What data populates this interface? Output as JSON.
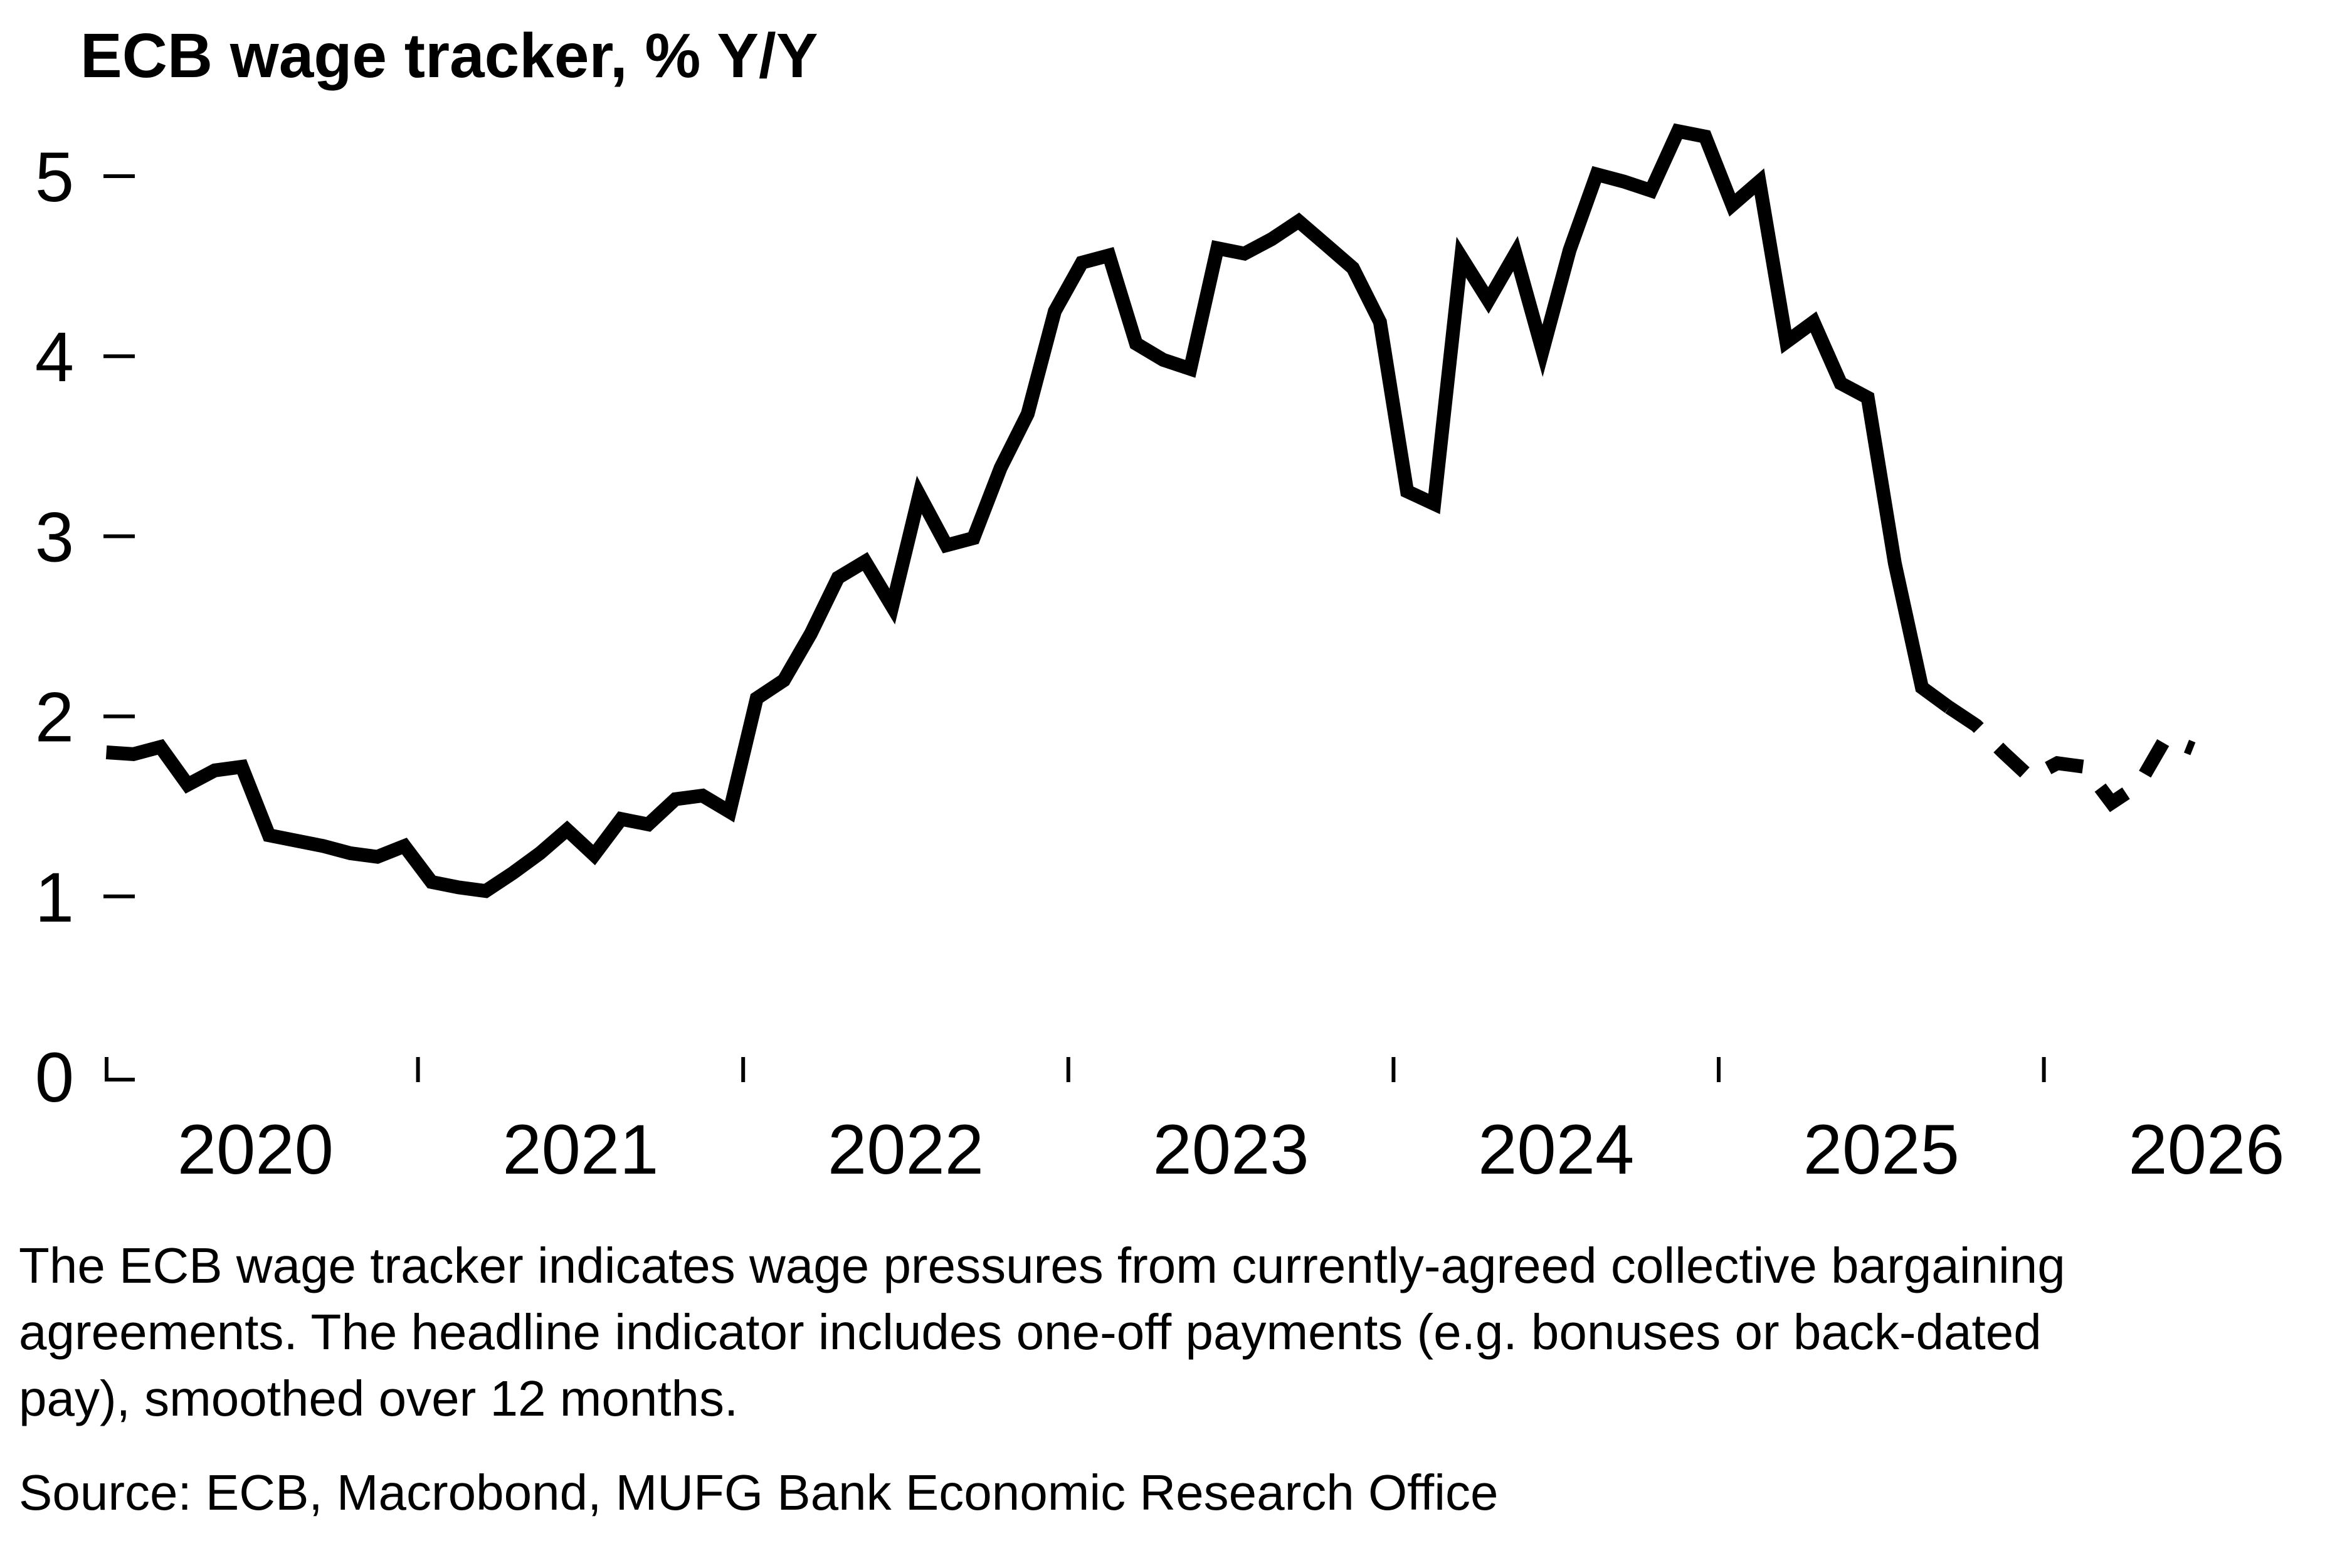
{
  "title": "ECB wage tracker, % Y/Y",
  "footnote": {
    "lines": [
      "The ECB wage tracker indicates wage pressures from currently-agreed collective bargaining",
      "agreements. The headline indicator includes one-off payments (e.g. bonuses or back-dated",
      "pay), smoothed over 12 months."
    ]
  },
  "source": "Source: ECB, Macrobond, MUFG Bank Economic Research Office",
  "chart_data": {
    "type": "line",
    "title": "ECB wage tracker, % Y/Y",
    "xlabel": "",
    "ylabel": "",
    "ylim": [
      0,
      5.5
    ],
    "yticks": [
      "0",
      "1",
      "2",
      "3",
      "4",
      "5"
    ],
    "grid": false,
    "legend": "none",
    "line_color": "#000000",
    "x_year_boundary_ticks": [
      2021,
      2022,
      2023,
      2024,
      2025,
      2026
    ],
    "x_year_labels": [
      "2020",
      "2021",
      "2022",
      "2023",
      "2024",
      "2025",
      "2026"
    ],
    "series_name": "ECB wage tracker, headline indicator, % Y/Y (smoothed over 12 months)",
    "freq": "monthly",
    "forecast_style": "dashed",
    "forecast_start_index": 69,
    "months": [
      "2020-01",
      "2020-02",
      "2020-03",
      "2020-04",
      "2020-05",
      "2020-06",
      "2020-07",
      "2020-08",
      "2020-09",
      "2020-10",
      "2020-11",
      "2020-12",
      "2021-01",
      "2021-02",
      "2021-03",
      "2021-04",
      "2021-05",
      "2021-06",
      "2021-07",
      "2021-08",
      "2021-09",
      "2021-10",
      "2021-11",
      "2021-12",
      "2022-01",
      "2022-02",
      "2022-03",
      "2022-04",
      "2022-05",
      "2022-06",
      "2022-07",
      "2022-08",
      "2022-09",
      "2022-10",
      "2022-11",
      "2022-12",
      "2023-01",
      "2023-02",
      "2023-03",
      "2023-04",
      "2023-05",
      "2023-06",
      "2023-07",
      "2023-08",
      "2023-09",
      "2023-10",
      "2023-11",
      "2023-12",
      "2024-01",
      "2024-02",
      "2024-03",
      "2024-04",
      "2024-05",
      "2024-06",
      "2024-07",
      "2024-08",
      "2024-09",
      "2024-10",
      "2024-11",
      "2024-12",
      "2025-01",
      "2025-02",
      "2025-03",
      "2025-04",
      "2025-05",
      "2025-06",
      "2025-07",
      "2025-08",
      "2025-09",
      "2025-10",
      "2025-11",
      "2025-12",
      "2026-01",
      "2026-02",
      "2026-03",
      "2026-04",
      "2026-05",
      "2026-06"
    ],
    "values": [
      1.8,
      1.79,
      1.83,
      1.62,
      1.7,
      1.72,
      1.34,
      1.31,
      1.28,
      1.24,
      1.22,
      1.28,
      1.08,
      1.05,
      1.03,
      1.13,
      1.24,
      1.37,
      1.23,
      1.43,
      1.4,
      1.54,
      1.56,
      1.47,
      2.1,
      2.2,
      2.46,
      2.77,
      2.86,
      2.61,
      3.23,
      2.95,
      2.99,
      3.38,
      3.68,
      4.25,
      4.52,
      4.56,
      4.07,
      3.98,
      3.93,
      4.6,
      4.57,
      4.65,
      4.75,
      4.62,
      4.49,
      4.19,
      3.25,
      3.18,
      4.55,
      4.31,
      4.57,
      4.03,
      4.59,
      5.01,
      4.97,
      4.92,
      5.25,
      5.22,
      4.84,
      4.97,
      4.08,
      4.19,
      3.85,
      3.77,
      2.85,
      2.16,
      2.05,
      1.95,
      1.8,
      1.66,
      1.74,
      1.72,
      1.52,
      1.62,
      1.88,
      1.82
    ]
  }
}
